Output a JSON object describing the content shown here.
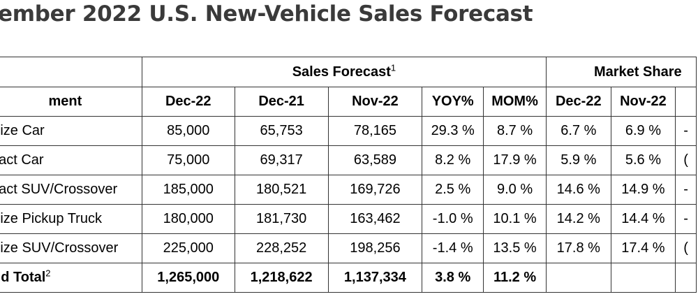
{
  "title": "ember 2022 U.S. New-Vehicle Sales Forecast",
  "table": {
    "group_headers": {
      "sales_forecast": "Sales Forecast",
      "sales_forecast_note": "1",
      "market_share": "Market Share"
    },
    "columns": {
      "segment": "ment",
      "dec22": "Dec-22",
      "dec21": "Dec-21",
      "nov22": "Nov-22",
      "yoy": "YOY%",
      "mom": "MOM%",
      "ms_dec22": "Dec-22",
      "ms_nov22": "Nov-22",
      "ms_extra": ""
    },
    "rows": [
      {
        "segment": "Size Car",
        "dec22": "85,000",
        "dec21": "65,753",
        "nov22": "78,165",
        "yoy": "29.3 %",
        "mom": "8.7 %",
        "ms_dec22": "6.7 %",
        "ms_nov22": "6.9 %",
        "ms_extra": "-"
      },
      {
        "segment": "pact Car",
        "dec22": "75,000",
        "dec21": "69,317",
        "nov22": "63,589",
        "yoy": "8.2 %",
        "mom": "17.9 %",
        "ms_dec22": "5.9 %",
        "ms_nov22": "5.6 %",
        "ms_extra": "("
      },
      {
        "segment": "pact SUV/Crossover",
        "dec22": "185,000",
        "dec21": "180,521",
        "nov22": "169,726",
        "yoy": "2.5 %",
        "mom": "9.0 %",
        "ms_dec22": "14.6 %",
        "ms_nov22": "14.9 %",
        "ms_extra": "-"
      },
      {
        "segment": "Size Pickup Truck",
        "dec22": "180,000",
        "dec21": "181,730",
        "nov22": "163,462",
        "yoy": "-1.0 %",
        "mom": "10.1 %",
        "ms_dec22": "14.2 %",
        "ms_nov22": "14.4 %",
        "ms_extra": "-"
      },
      {
        "segment": "Size SUV/Crossover",
        "dec22": "225,000",
        "dec21": "228,252",
        "nov22": "198,256",
        "yoy": "-1.4 %",
        "mom": "13.5 %",
        "ms_dec22": "17.8 %",
        "ms_nov22": "17.4 %",
        "ms_extra": "("
      }
    ],
    "total": {
      "segment": "nd Total",
      "segment_note": "2",
      "dec22": "1,265,000",
      "dec21": "1,218,622",
      "nov22": "1,137,334",
      "yoy": "3.8 %",
      "mom": "11.2 %",
      "ms_dec22": "",
      "ms_nov22": "",
      "ms_extra": ""
    }
  }
}
